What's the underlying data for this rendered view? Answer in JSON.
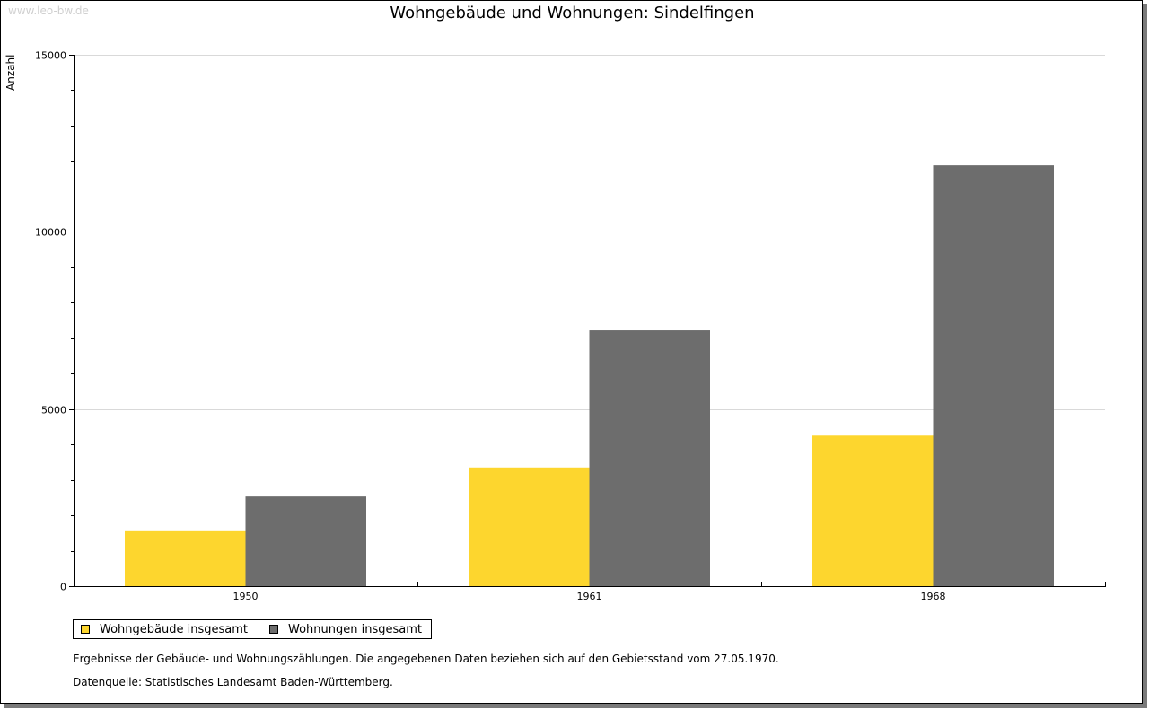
{
  "watermark": "www.leo-bw.de",
  "colors": {
    "series_buildings": "#fdd62e",
    "series_dwellings": "#6d6d6d",
    "grid": "#d9d9d9",
    "axis": "#000000"
  },
  "legend": {
    "placement": "bottom-left",
    "items": [
      {
        "label": "Wohngebäude insgesamt",
        "color": "#fdd62e"
      },
      {
        "label": "Wohnungen insgesamt",
        "color": "#6d6d6d"
      }
    ]
  },
  "footnotes": {
    "note": "Ergebnisse der Gebäude- und Wohnungszählungen. Die angegebenen Daten beziehen sich auf den Gebietsstand vom 27.05.1970.",
    "source": "Datenquelle: Statistisches Landesamt Baden-Württemberg."
  },
  "chart_data": {
    "type": "bar",
    "title": "Wohngebäude und Wohnungen: Sindelfingen",
    "xlabel": "",
    "ylabel": "Anzahl",
    "categories": [
      "1950",
      "1961",
      "1968"
    ],
    "series": [
      {
        "name": "Wohngebäude insgesamt",
        "values": [
          1550,
          3350,
          4250
        ],
        "color": "#fdd62e"
      },
      {
        "name": "Wohnungen insgesamt",
        "values": [
          2530,
          7220,
          11880
        ],
        "color": "#6d6d6d"
      }
    ],
    "ylim": [
      0,
      15000
    ],
    "yticks": [
      0,
      5000,
      10000,
      15000
    ],
    "grid": true
  }
}
